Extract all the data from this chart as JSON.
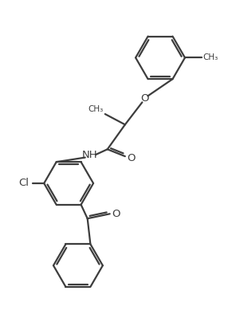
{
  "background_color": "#ffffff",
  "line_color": "#3d3d3d",
  "line_width": 1.6,
  "figsize": [
    2.96,
    4.04
  ],
  "dpi": 100,
  "xlim": [
    0,
    10
  ],
  "ylim": [
    0,
    13.6
  ]
}
